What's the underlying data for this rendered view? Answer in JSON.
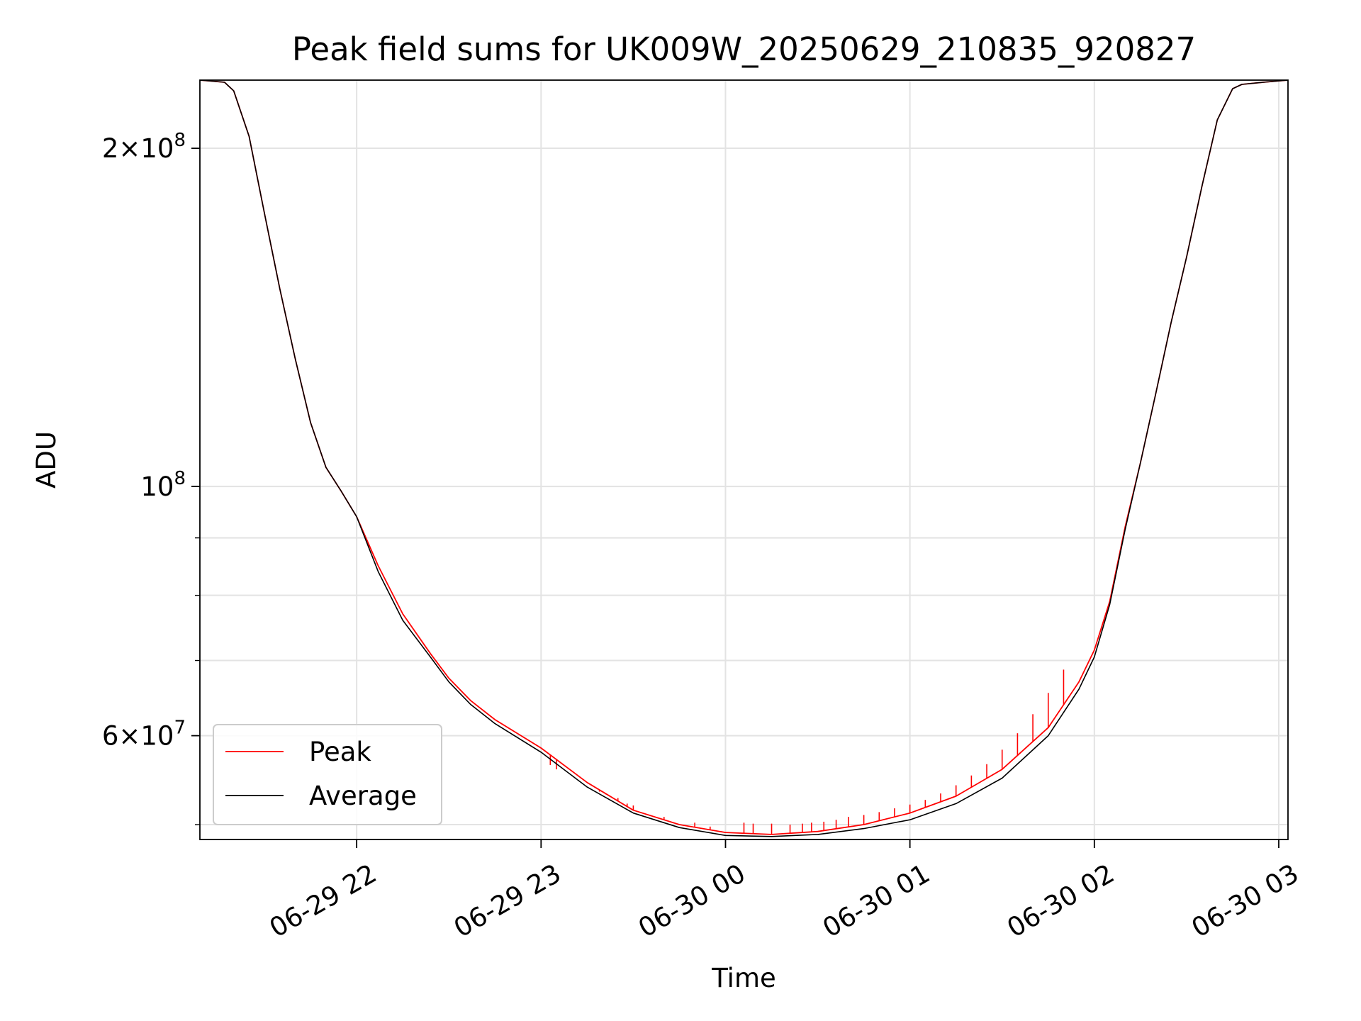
{
  "chart_data": {
    "type": "line",
    "title": "Peak field sums for UK009W_20250629_210835_920827",
    "xlabel": "Time",
    "ylabel": "ADU",
    "yscale": "log",
    "xlim": [
      "2025-06-29 21:09",
      "2025-06-30 03:03"
    ],
    "ylim": [
      48500000,
      230000000
    ],
    "grid": true,
    "legend_position": "lower-left",
    "x_tick_labels": [
      "06-29 22",
      "06-29 23",
      "06-30 00",
      "06-30 01",
      "06-30 02",
      "06-30 03"
    ],
    "x_tick_times": [
      "2025-06-29 22:00",
      "2025-06-29 23:00",
      "2025-06-30 00:00",
      "2025-06-30 01:00",
      "2025-06-30 02:00",
      "2025-06-30 03:00"
    ],
    "y_tick_labels": [
      {
        "value": 200000000,
        "mantissa": "2",
        "exp": "8"
      },
      {
        "value": 100000000,
        "mantissa": "",
        "exp": "8"
      },
      {
        "value": 60000000,
        "mantissa": "6",
        "exp": "7"
      }
    ],
    "y_minor_ticks": [
      50000000,
      70000000,
      80000000,
      90000000
    ],
    "series": [
      {
        "name": "Peak",
        "color": "#ff0000",
        "x": [
          "2025-06-29 21:09",
          "2025-06-29 21:17",
          "2025-06-29 21:20",
          "2025-06-29 21:25",
          "2025-06-29 21:30",
          "2025-06-29 21:35",
          "2025-06-29 21:40",
          "2025-06-29 21:45",
          "2025-06-29 21:50",
          "2025-06-29 21:55",
          "2025-06-29 22:00",
          "2025-06-29 22:07",
          "2025-06-29 22:15",
          "2025-06-29 22:24",
          "2025-06-29 22:30",
          "2025-06-29 22:37",
          "2025-06-29 22:45",
          "2025-06-29 23:00",
          "2025-06-29 23:15",
          "2025-06-29 23:30",
          "2025-06-29 23:45",
          "2025-06-30 00:00",
          "2025-06-30 00:15",
          "2025-06-30 00:30",
          "2025-06-30 00:45",
          "2025-06-30 01:00",
          "2025-06-30 01:15",
          "2025-06-30 01:30",
          "2025-06-30 01:45",
          "2025-06-30 01:55",
          "2025-06-30 02:00",
          "2025-06-30 02:05",
          "2025-06-30 02:10",
          "2025-06-30 02:15",
          "2025-06-30 02:20",
          "2025-06-30 02:25",
          "2025-06-30 02:30",
          "2025-06-30 02:35",
          "2025-06-30 02:40",
          "2025-06-30 02:45",
          "2025-06-30 02:48",
          "2025-06-30 02:55",
          "2025-06-30 03:03"
        ],
        "y": [
          230000000,
          229000000,
          225000000,
          205000000,
          175000000,
          150000000,
          130000000,
          114000000,
          104000000,
          99000000,
          94000000,
          85000000,
          77000000,
          71000000,
          67500000,
          64500000,
          62000000,
          58500000,
          54500000,
          51500000,
          50000000,
          49200000,
          49000000,
          49300000,
          50000000,
          51200000,
          53000000,
          56000000,
          61000000,
          67000000,
          71500000,
          79000000,
          92000000,
          105000000,
          121000000,
          140000000,
          160000000,
          185000000,
          212000000,
          226000000,
          228000000,
          229000000,
          230000000
        ],
        "spikes": [
          {
            "x": "2025-06-29 23:03",
            "y": 56500000
          },
          {
            "x": "2025-06-29 23:05",
            "y": 56000000
          },
          {
            "x": "2025-06-29 23:19",
            "y": 53500000
          },
          {
            "x": "2025-06-29 23:21",
            "y": 53200000
          },
          {
            "x": "2025-06-29 23:25",
            "y": 52800000
          },
          {
            "x": "2025-06-29 23:28",
            "y": 52200000
          },
          {
            "x": "2025-06-29 23:30",
            "y": 52000000
          },
          {
            "x": "2025-06-29 23:40",
            "y": 50800000
          },
          {
            "x": "2025-06-29 23:50",
            "y": 50200000
          },
          {
            "x": "2025-06-29 23:55",
            "y": 49800000
          },
          {
            "x": "2025-06-30 00:06",
            "y": 50200000
          },
          {
            "x": "2025-06-30 00:09",
            "y": 50100000
          },
          {
            "x": "2025-06-30 00:15",
            "y": 50100000
          },
          {
            "x": "2025-06-30 00:21",
            "y": 50000000
          },
          {
            "x": "2025-06-30 00:25",
            "y": 50100000
          },
          {
            "x": "2025-06-30 00:28",
            "y": 50200000
          },
          {
            "x": "2025-06-30 00:32",
            "y": 50300000
          },
          {
            "x": "2025-06-30 00:36",
            "y": 50500000
          },
          {
            "x": "2025-06-30 00:40",
            "y": 50800000
          },
          {
            "x": "2025-06-30 00:45",
            "y": 51000000
          },
          {
            "x": "2025-06-30 00:50",
            "y": 51300000
          },
          {
            "x": "2025-06-30 00:55",
            "y": 51700000
          },
          {
            "x": "2025-06-30 01:00",
            "y": 52100000
          },
          {
            "x": "2025-06-30 01:05",
            "y": 52600000
          },
          {
            "x": "2025-06-30 01:10",
            "y": 53300000
          },
          {
            "x": "2025-06-30 01:15",
            "y": 54200000
          },
          {
            "x": "2025-06-30 01:20",
            "y": 55300000
          },
          {
            "x": "2025-06-30 01:25",
            "y": 56600000
          },
          {
            "x": "2025-06-30 01:30",
            "y": 58300000
          },
          {
            "x": "2025-06-30 01:35",
            "y": 60300000
          },
          {
            "x": "2025-06-30 01:40",
            "y": 62700000
          },
          {
            "x": "2025-06-30 01:45",
            "y": 65500000
          },
          {
            "x": "2025-06-30 01:50",
            "y": 68700000
          }
        ]
      },
      {
        "name": "Average",
        "color": "#000000",
        "x": [
          "2025-06-29 21:09",
          "2025-06-29 21:17",
          "2025-06-29 21:20",
          "2025-06-29 21:25",
          "2025-06-29 21:30",
          "2025-06-29 21:35",
          "2025-06-29 21:40",
          "2025-06-29 21:45",
          "2025-06-29 21:50",
          "2025-06-29 21:55",
          "2025-06-29 22:00",
          "2025-06-29 22:07",
          "2025-06-29 22:15",
          "2025-06-29 22:24",
          "2025-06-29 22:30",
          "2025-06-29 22:37",
          "2025-06-29 22:45",
          "2025-06-29 23:00",
          "2025-06-29 23:15",
          "2025-06-29 23:30",
          "2025-06-29 23:45",
          "2025-06-30 00:00",
          "2025-06-30 00:15",
          "2025-06-30 00:30",
          "2025-06-30 00:45",
          "2025-06-30 01:00",
          "2025-06-30 01:15",
          "2025-06-30 01:30",
          "2025-06-30 01:45",
          "2025-06-30 01:55",
          "2025-06-30 02:00",
          "2025-06-30 02:05",
          "2025-06-30 02:10",
          "2025-06-30 02:15",
          "2025-06-30 02:20",
          "2025-06-30 02:25",
          "2025-06-30 02:30",
          "2025-06-30 02:35",
          "2025-06-30 02:40",
          "2025-06-30 02:45",
          "2025-06-30 02:48",
          "2025-06-30 02:55",
          "2025-06-30 03:03"
        ],
        "y": [
          230000000,
          229000000,
          225000000,
          205000000,
          175000000,
          150000000,
          130000000,
          114000000,
          104000000,
          99000000,
          94000000,
          84000000,
          76000000,
          70500000,
          67000000,
          64000000,
          61500000,
          58000000,
          54000000,
          51200000,
          49700000,
          48900000,
          48800000,
          49000000,
          49600000,
          50500000,
          52200000,
          55000000,
          60000000,
          66000000,
          70500000,
          78500000,
          91500000,
          105000000,
          121000000,
          140000000,
          160000000,
          185000000,
          212000000,
          226000000,
          228000000,
          229000000,
          230000000
        ]
      }
    ]
  }
}
